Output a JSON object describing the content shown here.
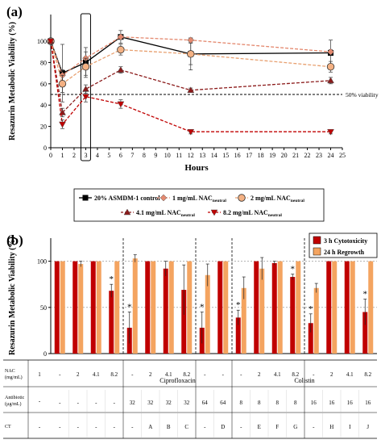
{
  "colors": {
    "black": "#000000",
    "salmon": "#E4896F",
    "orange_fill": "#F4B183",
    "dark_red": "#8B1A1A",
    "red": "#C00000",
    "cyto_red": "#C00000",
    "regrowth_orange": "#F4A460"
  },
  "chart_data": [
    {
      "type": "line",
      "panel_label": "(a)",
      "xlabel": "Hours",
      "ylabel": "Resazurin Metabolic Viability (%)",
      "x_ticks": [
        "0",
        "1",
        "2",
        "3",
        "4",
        "5",
        "6",
        "7",
        "8",
        "9",
        "10",
        "11",
        "12",
        "13",
        "14",
        "15",
        "16",
        "17",
        "18",
        "19",
        "20",
        "21",
        "22",
        "23",
        "24",
        "25"
      ],
      "y_ticks": [
        "0",
        "20",
        "40",
        "60",
        "80",
        "100"
      ],
      "xlim": [
        0,
        25
      ],
      "ylim": [
        0,
        125
      ],
      "highlight_x": 3,
      "reference_line": {
        "value": 50,
        "label": "50% viability",
        "style": "dashed"
      },
      "series": [
        {
          "name": "20% ASMDM-1 control",
          "marker": "square",
          "style": "solid",
          "color_key": "black",
          "x": [
            0,
            1,
            3,
            6,
            12,
            24
          ],
          "y": [
            100,
            70,
            80,
            104,
            88,
            89
          ],
          "err": [
            2,
            27,
            14,
            6,
            15,
            12
          ]
        },
        {
          "name": "1 mg/mL NAC",
          "name_sub": "neutral",
          "marker": "diamond",
          "style": "dashed",
          "color_key": "salmon",
          "x": [
            0,
            1,
            3,
            6,
            12,
            24
          ],
          "y": [
            100,
            68,
            84,
            104,
            101,
            90
          ],
          "err": [
            2,
            5,
            6,
            2,
            2,
            2
          ]
        },
        {
          "name": "2 mg/mL NAC",
          "name_sub": "neutral",
          "marker": "circle",
          "style": "dashed",
          "color_key": "orange",
          "x": [
            0,
            1,
            3,
            6,
            12,
            24
          ],
          "y": [
            100,
            60,
            76,
            92,
            88,
            76
          ],
          "err": [
            2,
            8,
            8,
            5,
            10,
            5
          ]
        },
        {
          "name": "4.1 mg/mL NAC",
          "name_sub": "neutral",
          "marker": "triangle",
          "style": "dashed",
          "color_key": "dark_red",
          "x": [
            0,
            1,
            3,
            6,
            12,
            24
          ],
          "y": [
            100,
            33,
            55,
            73,
            54,
            63
          ],
          "err": [
            2,
            4,
            4,
            3,
            2,
            3
          ]
        },
        {
          "name": "8.2 mg/mL NAC",
          "name_sub": "neutral",
          "marker": "triangle-down",
          "style": "dashed",
          "color_key": "red",
          "x": [
            0,
            1,
            3,
            6,
            12,
            24
          ],
          "y": [
            100,
            22,
            48,
            41,
            15,
            15
          ],
          "err": [
            2,
            4,
            5,
            4,
            2,
            2
          ]
        }
      ]
    },
    {
      "type": "bar",
      "panel_label": "(b)",
      "ylabel": "Resazurin Metabolic Viability (%)",
      "y_ticks": [
        "0",
        "50",
        "100"
      ],
      "ylim": [
        0,
        125
      ],
      "reference_line": {
        "value": 50,
        "style": "dashed"
      },
      "series": [
        {
          "name": "3 h Cytotoxicity",
          "color_key": "cyto_red",
          "values": [
            100,
            100,
            100,
            68,
            28,
            100,
            92,
            69,
            28,
            100,
            39,
            100,
            98,
            83,
            33,
            100,
            100,
            45
          ],
          "err": [
            0,
            0,
            0,
            7,
            17,
            0,
            8,
            27,
            17,
            0,
            8,
            0,
            2,
            3,
            10,
            0,
            0,
            14
          ],
          "significant": [
            false,
            false,
            false,
            true,
            true,
            false,
            false,
            false,
            true,
            false,
            true,
            false,
            false,
            true,
            true,
            false,
            false,
            true
          ]
        },
        {
          "name": "24 h Regrowth",
          "color_key": "regrowth_orange",
          "values": [
            100,
            97,
            100,
            100,
            103,
            100,
            100,
            100,
            85,
            100,
            71,
            92,
            100,
            100,
            71,
            100,
            100,
            100
          ],
          "err": [
            0,
            3,
            0,
            0,
            4,
            0,
            0,
            0,
            12,
            0,
            12,
            12,
            0,
            0,
            5,
            0,
            0,
            0
          ],
          "significant": [
            false,
            false,
            false,
            false,
            false,
            false,
            false,
            false,
            false,
            false,
            false,
            false,
            false,
            false,
            false,
            false,
            false,
            false
          ]
        }
      ],
      "table": {
        "row_labels": [
          {
            "line1": "NAC",
            "line2": "(mg/mL)"
          },
          {
            "line1": "Antibiotic",
            "line2": "(µg/mL)"
          },
          {
            "line1": "CT",
            "line2": ""
          }
        ],
        "nac": [
          "-",
          "2",
          "4.1",
          "8.2",
          "-",
          "2",
          "4.1",
          "8.2",
          "-",
          "-",
          "-",
          "2",
          "4.1",
          "8.2",
          "-",
          "2",
          "4.1",
          "8.2"
        ],
        "nac_first": "1",
        "antibiotic": [
          "-",
          "-",
          "-",
          "-",
          "32",
          "32",
          "32",
          "32",
          "64",
          "64",
          "8",
          "8",
          "8",
          "8",
          "16",
          "16",
          "16",
          "16"
        ],
        "antibiotic_first": "-",
        "ct": [
          "-",
          "-",
          "-",
          "-",
          "-",
          "A",
          "B",
          "C",
          "-",
          "D",
          "-",
          "E",
          "F",
          "G",
          "-",
          "H",
          "I",
          "J"
        ],
        "ct_first": "-",
        "groups": [
          "Ciprofloxacin",
          "Colistin"
        ]
      }
    }
  ]
}
